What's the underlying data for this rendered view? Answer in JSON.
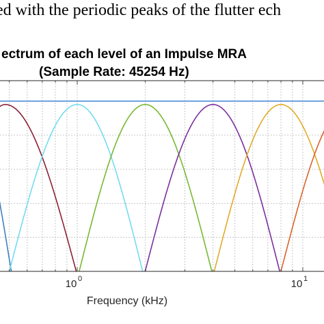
{
  "caption": "ed with the periodic peaks of the flutter ech",
  "chart_data": {
    "type": "line",
    "title": [
      "ectrum  of each level of an Impulse MRA",
      "(Sample Rate: 45254 Hz)"
    ],
    "xlabel": "Frequency (kHz)",
    "ylabel": "",
    "xscale": "log",
    "xlim": [
      0.1,
      14
    ],
    "ylim": [
      0,
      1.12
    ],
    "grid": true,
    "xticks": [
      {
        "base": "10",
        "exp": "0",
        "value": 1
      },
      {
        "base": "10",
        "exp": "1",
        "value": 10
      }
    ],
    "series": [
      {
        "color": "#4e8fd6",
        "shape": "flat",
        "value": 1.0
      },
      {
        "color": "#3f7fc2",
        "shape": "band",
        "x_start": 0.28,
        "x_peak": 0.33,
        "x_end": 0.51,
        "peak": 0.98
      },
      {
        "color": "#8b2035",
        "shape": "band",
        "x_start": 0.27,
        "x_peak": 0.48,
        "x_end": 0.99,
        "peak": 0.98
      },
      {
        "color": "#74dbf0",
        "shape": "band",
        "x_start": 0.5,
        "x_peak": 1.0,
        "x_end": 1.95,
        "peak": 0.98
      },
      {
        "color": "#77b832",
        "shape": "band",
        "x_start": 1.02,
        "x_peak": 2.0,
        "x_end": 3.95,
        "peak": 0.98
      },
      {
        "color": "#7b2f9e",
        "shape": "band",
        "x_start": 2.0,
        "x_peak": 4.0,
        "x_end": 7.9,
        "peak": 0.98
      },
      {
        "color": "#e0ab28",
        "shape": "band",
        "x_start": 4.05,
        "x_peak": 8.0,
        "x_end": 15.8,
        "peak": 0.98
      },
      {
        "color": "#d9642d",
        "shape": "band",
        "x_start": 8.0,
        "x_peak": 16.0,
        "x_end": 32.0,
        "peak": 0.98
      }
    ]
  }
}
